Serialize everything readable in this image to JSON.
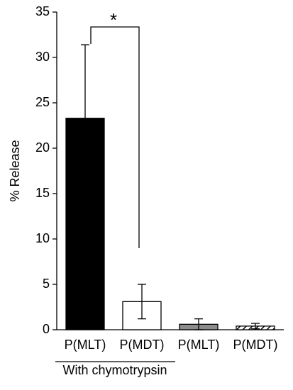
{
  "chart_data": {
    "type": "bar",
    "categories": [
      "P(MLT)",
      "P(MDT)",
      "P(MLT)",
      "P(MDT)"
    ],
    "values": [
      23.3,
      3.1,
      0.6,
      0.4
    ],
    "errors": [
      8.1,
      1.9,
      0.6,
      0.3
    ],
    "colors": [
      "#000000",
      "#ffffff",
      "#8c8c8c",
      "#ffffff"
    ],
    "hatch": [
      false,
      false,
      false,
      true
    ],
    "ylabel": "% Release",
    "ylim": [
      0,
      35
    ],
    "yticks": [
      0,
      5,
      10,
      15,
      20,
      25,
      30,
      35
    ],
    "annotation": "*",
    "group_label": "With chymotrypsin",
    "grid": false
  }
}
